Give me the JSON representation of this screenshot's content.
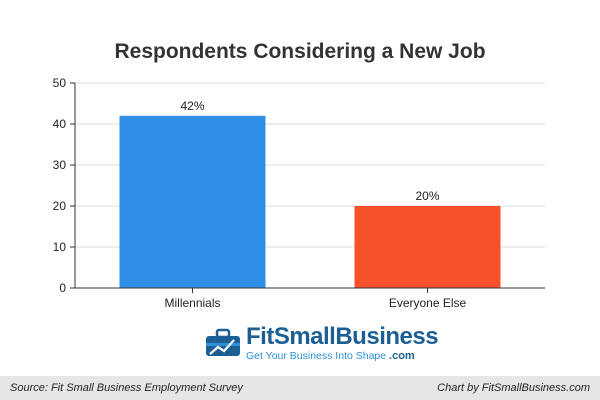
{
  "chart_data": {
    "type": "bar",
    "title": "Respondents Considering a New Job",
    "categories": [
      "Millennials",
      "Everyone Else"
    ],
    "values": [
      42,
      20
    ],
    "data_labels": [
      "42%",
      "20%"
    ],
    "colors": [
      "#2f8fe6",
      "#f5512a"
    ],
    "yticks": [
      "0",
      "10",
      "20",
      "30",
      "40",
      "50"
    ],
    "ylim": [
      0,
      50
    ],
    "xlabel": "",
    "ylabel": "",
    "grid": true,
    "legend": "none"
  },
  "branding": {
    "logo_name_part1": "FitSmallBusiness",
    "logo_tagline": "Get Your Business Into Shape",
    "logo_domain": ".com"
  },
  "footer": {
    "source": "Source: Fit Small Business Employment Survey",
    "credit": "Chart by FitSmallBusiness.com"
  }
}
